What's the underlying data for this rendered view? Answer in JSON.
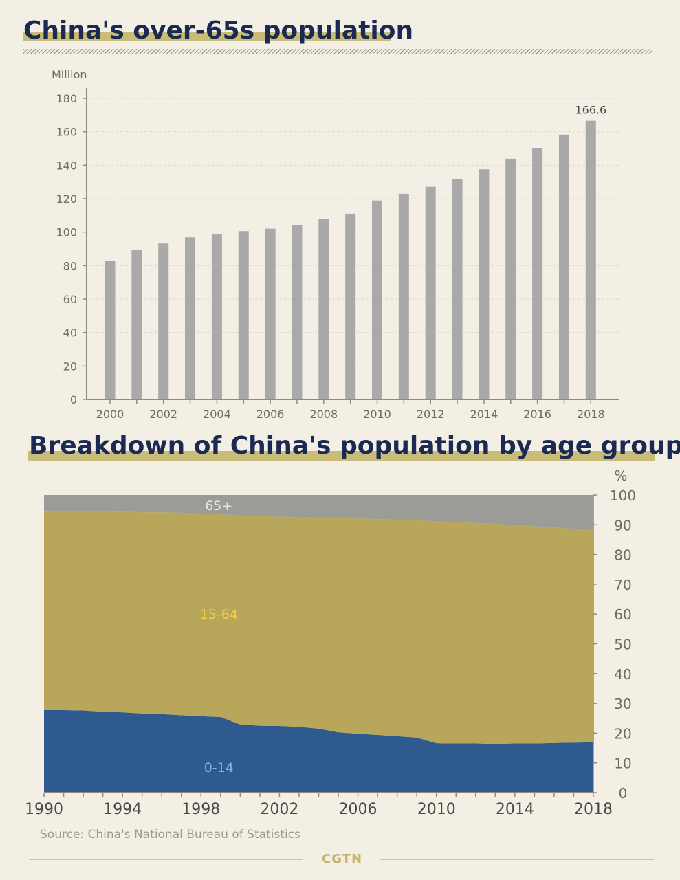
{
  "chart_data": [
    {
      "type": "bar",
      "title": "China's over-65s population",
      "ylabel": "Million",
      "xlabel": "",
      "ylim": [
        0,
        180
      ],
      "yticks": [
        0,
        20,
        40,
        60,
        80,
        100,
        120,
        140,
        160,
        180
      ],
      "categories": [
        "2000",
        "2001",
        "2002",
        "2003",
        "2004",
        "2005",
        "2006",
        "2007",
        "2008",
        "2009",
        "2010",
        "2011",
        "2012",
        "2013",
        "2014",
        "2015",
        "2016",
        "2017",
        "2018"
      ],
      "x_tick_labels": [
        "2000",
        "2002",
        "2004",
        "2006",
        "2008",
        "2010",
        "2012",
        "2014",
        "2016",
        "2018"
      ],
      "values": [
        82.9,
        89.2,
        93.2,
        96.9,
        98.6,
        100.6,
        102.1,
        104.2,
        107.8,
        111.0,
        118.9,
        122.9,
        127.1,
        131.6,
        137.6,
        143.9,
        150.0,
        158.3,
        166.6
      ],
      "data_labels": [
        {
          "category": "2018",
          "text": "166.6"
        }
      ],
      "grid": true,
      "color": "#a9a9a9"
    },
    {
      "type": "area",
      "stacked": true,
      "title": "Breakdown of China's population by age group",
      "ylabel": "%",
      "xlabel": "",
      "ylim": [
        0,
        100
      ],
      "yticks": [
        0,
        10,
        20,
        30,
        40,
        50,
        60,
        70,
        80,
        90,
        100
      ],
      "x": [
        1990,
        1991,
        1992,
        1993,
        1994,
        1995,
        1996,
        1997,
        1998,
        1999,
        2000,
        2001,
        2002,
        2003,
        2004,
        2005,
        2006,
        2007,
        2008,
        2009,
        2010,
        2011,
        2012,
        2013,
        2014,
        2015,
        2016,
        2017,
        2018
      ],
      "x_tick_labels": [
        "1990",
        "1994",
        "1998",
        "2002",
        "2006",
        "2010",
        "2014",
        "2018"
      ],
      "series": [
        {
          "name": "0-14",
          "color": "#2e5a8f",
          "label_color": "#7fb0e6",
          "values": [
            27.7,
            27.7,
            27.6,
            27.2,
            27.0,
            26.6,
            26.4,
            26.0,
            25.7,
            25.4,
            22.9,
            22.5,
            22.4,
            22.1,
            21.5,
            20.3,
            19.8,
            19.4,
            19.0,
            18.5,
            16.6,
            16.5,
            16.5,
            16.4,
            16.5,
            16.5,
            16.7,
            16.8,
            16.9
          ]
        },
        {
          "name": "15-64",
          "color": "#b8a75b",
          "label_color": "#f0d04a",
          "values": [
            66.7,
            66.9,
            67.0,
            67.3,
            67.4,
            67.6,
            67.8,
            68.0,
            68.0,
            68.2,
            70.1,
            70.4,
            70.3,
            70.4,
            70.9,
            72.0,
            72.3,
            72.5,
            72.7,
            73.0,
            74.5,
            74.4,
            74.1,
            73.9,
            73.4,
            73.0,
            72.5,
            71.8,
            71.2
          ]
        },
        {
          "name": "65+",
          "color": "#9b9b98",
          "label_color": "#e8e6e0",
          "values": [
            5.6,
            5.4,
            5.4,
            5.5,
            5.6,
            5.8,
            5.8,
            6.0,
            6.3,
            6.4,
            7.0,
            7.1,
            7.3,
            7.5,
            7.6,
            7.7,
            7.9,
            8.1,
            8.3,
            8.5,
            8.9,
            9.1,
            9.4,
            9.7,
            10.1,
            10.5,
            10.8,
            11.4,
            11.9
          ]
        }
      ],
      "legend": "in-area labels"
    }
  ],
  "source": "Source: China's National Bureau of Statistics",
  "logo": "CGTN",
  "colors": {
    "title": "#1b2a52",
    "title_bar": "#c9bc78",
    "background": "#f3efe4"
  }
}
